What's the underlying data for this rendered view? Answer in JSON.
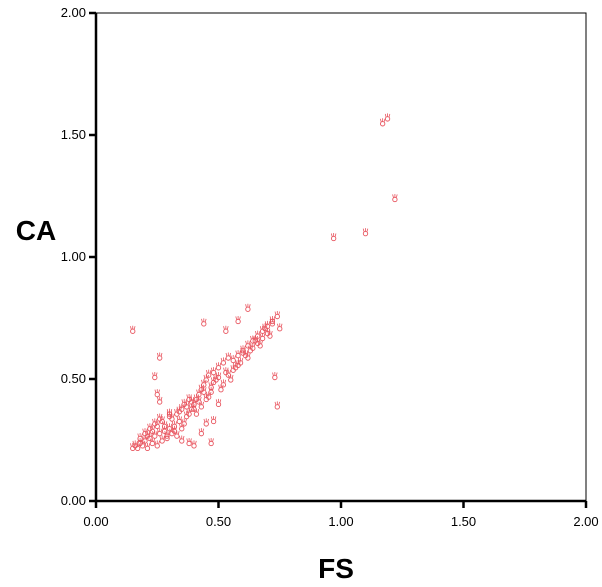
{
  "chart_data": {
    "type": "scatter",
    "title": "",
    "xlabel": "FS",
    "ylabel": "CA",
    "xlim": [
      0,
      2
    ],
    "ylim": [
      0,
      2
    ],
    "x_ticks": [
      "0.00",
      "0.50",
      "1.00",
      "1.50",
      "2.00"
    ],
    "y_ticks": [
      "0.00",
      "0.50",
      "1.00",
      "1.50",
      "2.00"
    ],
    "grid": false,
    "legend": "none",
    "marker_color": "#e8555f",
    "series": [
      {
        "points": [
          [
            0.15,
            0.22
          ],
          [
            0.16,
            0.23
          ],
          [
            0.17,
            0.22
          ],
          [
            0.18,
            0.24
          ],
          [
            0.19,
            0.23
          ],
          [
            0.2,
            0.25
          ],
          [
            0.21,
            0.22
          ],
          [
            0.22,
            0.26
          ],
          [
            0.23,
            0.24
          ],
          [
            0.24,
            0.27
          ],
          [
            0.25,
            0.23
          ],
          [
            0.26,
            0.28
          ],
          [
            0.27,
            0.25
          ],
          [
            0.28,
            0.29
          ],
          [
            0.29,
            0.26
          ],
          [
            0.3,
            0.3
          ],
          [
            0.31,
            0.28
          ],
          [
            0.32,
            0.31
          ],
          [
            0.33,
            0.27
          ],
          [
            0.34,
            0.33
          ],
          [
            0.35,
            0.3
          ],
          [
            0.36,
            0.32
          ],
          [
            0.37,
            0.35
          ],
          [
            0.38,
            0.36
          ],
          [
            0.39,
            0.38
          ],
          [
            0.4,
            0.4
          ],
          [
            0.41,
            0.42
          ],
          [
            0.42,
            0.44
          ],
          [
            0.43,
            0.46
          ],
          [
            0.44,
            0.48
          ],
          [
            0.45,
            0.5
          ],
          [
            0.46,
            0.52
          ],
          [
            0.47,
            0.47
          ],
          [
            0.48,
            0.53
          ],
          [
            0.5,
            0.55
          ],
          [
            0.52,
            0.57
          ],
          [
            0.54,
            0.59
          ],
          [
            0.56,
            0.58
          ],
          [
            0.58,
            0.6
          ],
          [
            0.6,
            0.62
          ],
          [
            0.62,
            0.64
          ],
          [
            0.64,
            0.66
          ],
          [
            0.66,
            0.68
          ],
          [
            0.68,
            0.7
          ],
          [
            0.7,
            0.72
          ],
          [
            0.72,
            0.74
          ],
          [
            0.74,
            0.76
          ],
          [
            0.75,
            0.71
          ],
          [
            0.2,
            0.28
          ],
          [
            0.22,
            0.3
          ],
          [
            0.24,
            0.32
          ],
          [
            0.26,
            0.34
          ],
          [
            0.28,
            0.31
          ],
          [
            0.3,
            0.35
          ],
          [
            0.32,
            0.29
          ],
          [
            0.34,
            0.37
          ],
          [
            0.36,
            0.4
          ],
          [
            0.38,
            0.42
          ],
          [
            0.4,
            0.38
          ],
          [
            0.42,
            0.41
          ],
          [
            0.44,
            0.45
          ],
          [
            0.46,
            0.43
          ],
          [
            0.48,
            0.49
          ],
          [
            0.5,
            0.51
          ],
          [
            0.52,
            0.48
          ],
          [
            0.54,
            0.52
          ],
          [
            0.56,
            0.54
          ],
          [
            0.58,
            0.56
          ],
          [
            0.6,
            0.61
          ],
          [
            0.62,
            0.59
          ],
          [
            0.64,
            0.63
          ],
          [
            0.66,
            0.65
          ],
          [
            0.68,
            0.67
          ],
          [
            0.7,
            0.69
          ],
          [
            0.72,
            0.73
          ],
          [
            0.18,
            0.26
          ],
          [
            0.21,
            0.27
          ],
          [
            0.23,
            0.29
          ],
          [
            0.25,
            0.31
          ],
          [
            0.27,
            0.33
          ],
          [
            0.29,
            0.27
          ],
          [
            0.31,
            0.34
          ],
          [
            0.33,
            0.36
          ],
          [
            0.35,
            0.38
          ],
          [
            0.37,
            0.39
          ],
          [
            0.39,
            0.41
          ],
          [
            0.41,
            0.36
          ],
          [
            0.43,
            0.39
          ],
          [
            0.45,
            0.42
          ],
          [
            0.47,
            0.45
          ],
          [
            0.49,
            0.5
          ],
          [
            0.51,
            0.46
          ],
          [
            0.53,
            0.53
          ],
          [
            0.55,
            0.5
          ],
          [
            0.57,
            0.55
          ],
          [
            0.59,
            0.57
          ],
          [
            0.61,
            0.6
          ],
          [
            0.63,
            0.62
          ],
          [
            0.65,
            0.66
          ],
          [
            0.67,
            0.64
          ],
          [
            0.69,
            0.71
          ],
          [
            0.71,
            0.68
          ],
          [
            0.15,
            0.7
          ],
          [
            0.26,
            0.59
          ],
          [
            0.24,
            0.51
          ],
          [
            0.25,
            0.44
          ],
          [
            0.26,
            0.41
          ],
          [
            0.3,
            0.36
          ],
          [
            0.35,
            0.25
          ],
          [
            0.38,
            0.24
          ],
          [
            0.4,
            0.23
          ],
          [
            0.43,
            0.28
          ],
          [
            0.47,
            0.24
          ],
          [
            0.45,
            0.32
          ],
          [
            0.48,
            0.33
          ],
          [
            0.5,
            0.4
          ],
          [
            0.44,
            0.73
          ],
          [
            0.53,
            0.7
          ],
          [
            0.58,
            0.74
          ],
          [
            0.62,
            0.79
          ],
          [
            0.73,
            0.51
          ],
          [
            0.74,
            0.39
          ],
          [
            0.97,
            1.08
          ],
          [
            1.1,
            1.1
          ],
          [
            1.17,
            1.55
          ],
          [
            1.19,
            1.57
          ],
          [
            1.22,
            1.24
          ]
        ]
      }
    ]
  }
}
